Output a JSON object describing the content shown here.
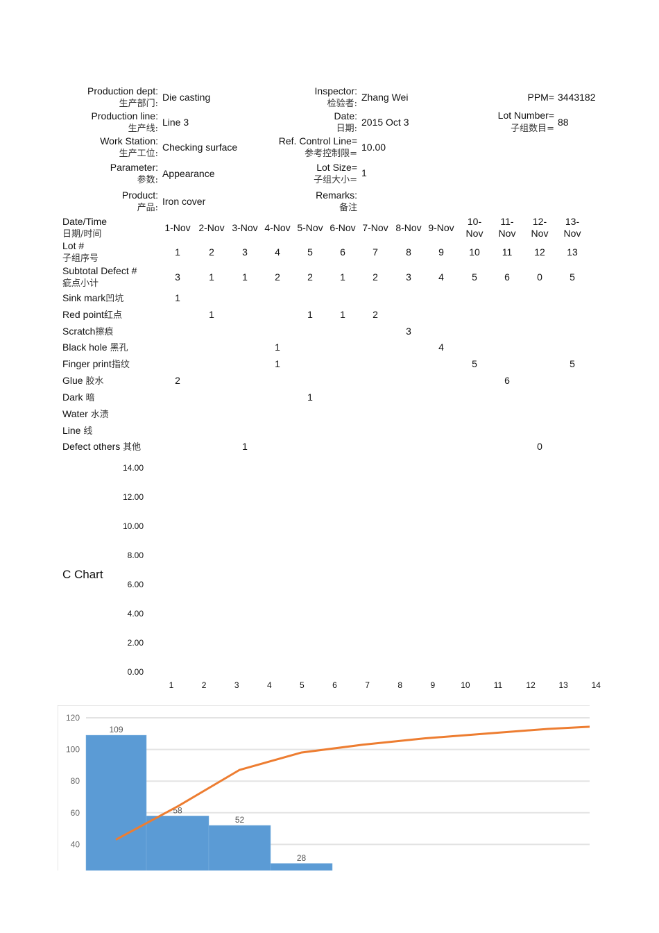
{
  "header": {
    "left": [
      {
        "en": "Production dept:",
        "zh": "生产部门:",
        "value": "Die casting"
      },
      {
        "en": "Production line:",
        "zh": "生产线:",
        "value": "Line 3"
      },
      {
        "en": "Work Station:",
        "zh": "生产工位:",
        "value": "Checking surface"
      },
      {
        "en": "Parameter:",
        "zh": "参数:",
        "value": "Appearance"
      },
      {
        "en": "Product:",
        "zh": "产品:",
        "value": "Iron cover"
      }
    ],
    "middle": [
      {
        "en": "Inspector:",
        "zh": "检验者:",
        "value": "Zhang Wei"
      },
      {
        "en": "Date:",
        "zh": "日期:",
        "value": "2015 Oct 3"
      },
      {
        "en": "Ref. Control Line=",
        "zh": "参考控制限=",
        "value": "10.00"
      },
      {
        "en": "Lot Size=",
        "zh": "子组大小=",
        "value": "1"
      },
      {
        "en": "Remarks:",
        "zh": "备注",
        "value": ""
      }
    ],
    "ppm": {
      "label": "PPM=",
      "value": "3443182"
    },
    "lot_number": {
      "en": "Lot Number=",
      "zh": "子组数目=",
      "value": "88"
    }
  },
  "table": {
    "row_labels": [
      {
        "en": "Date/Time",
        "zh": "日期/时间"
      },
      {
        "en": "Lot #",
        "zh": "子组序号"
      },
      {
        "en": "Subtotal Defect #",
        "zh": "疵点小计"
      },
      {
        "en": "Sink mark",
        "zh": "凹坑"
      },
      {
        "en": "Red point",
        "zh": "红点"
      },
      {
        "en": "Scratch",
        "zh": "擦痕"
      },
      {
        "en": "Black hole ",
        "zh": "黑孔"
      },
      {
        "en": "Finger print",
        "zh": "指纹"
      },
      {
        "en": "Glue ",
        "zh": "胶水"
      },
      {
        "en": "Dark ",
        "zh": "暗"
      },
      {
        "en": "Water ",
        "zh": "水渍"
      },
      {
        "en": "Line ",
        "zh": "线"
      },
      {
        "en": "Defect others ",
        "zh": "其他"
      }
    ],
    "dates": [
      "1-Nov",
      "2-Nov",
      "3-Nov",
      "4-Nov",
      "5-Nov",
      "6-Nov",
      "7-Nov",
      "8-Nov",
      "9-Nov",
      "10-\nNov",
      "11-\nNov",
      "12-\nNov",
      "13-\nNov"
    ],
    "rows": [
      [
        "1",
        "2",
        "3",
        "4",
        "5",
        "6",
        "7",
        "8",
        "9",
        "10",
        "11",
        "12",
        "13"
      ],
      [
        "3",
        "1",
        "1",
        "2",
        "2",
        "1",
        "2",
        "3",
        "4",
        "5",
        "6",
        "0",
        "5"
      ],
      [
        "1",
        "",
        "",
        "",
        "",
        "",
        "",
        "",
        "",
        "",
        "",
        "",
        ""
      ],
      [
        "",
        "1",
        "",
        "",
        "1",
        "1",
        "2",
        "",
        "",
        "",
        "",
        "",
        ""
      ],
      [
        "",
        "",
        "",
        "",
        "",
        "",
        "",
        "3",
        "",
        "",
        "",
        "",
        ""
      ],
      [
        "",
        "",
        "",
        "1",
        "",
        "",
        "",
        "",
        "4",
        "",
        "",
        "",
        ""
      ],
      [
        "",
        "",
        "",
        "1",
        "",
        "",
        "",
        "",
        "",
        "5",
        "",
        "",
        "5"
      ],
      [
        "2",
        "",
        "",
        "",
        "",
        "",
        "",
        "",
        "",
        "",
        "6",
        "",
        ""
      ],
      [
        "",
        "",
        "",
        "",
        "1",
        "",
        "",
        "",
        "",
        "",
        "",
        "",
        ""
      ],
      [
        "",
        "",
        "",
        "",
        "",
        "",
        "",
        "",
        "",
        "",
        "",
        "",
        ""
      ],
      [
        "",
        "",
        "",
        "",
        "",
        "",
        "",
        "",
        "",
        "",
        "",
        "",
        ""
      ],
      [
        "",
        "",
        "1",
        "",
        "",
        "",
        "",
        "",
        "",
        "",
        "",
        "0",
        ""
      ]
    ]
  },
  "chart_data": [
    {
      "type": "line",
      "title": "C Chart",
      "y_ticks": [
        "0.00",
        "2.00",
        "4.00",
        "6.00",
        "8.00",
        "10.00",
        "12.00",
        "14.00"
      ],
      "x_ticks": [
        "1",
        "2",
        "3",
        "4",
        "5",
        "6",
        "7",
        "8",
        "9",
        "10",
        "11",
        "12",
        "13",
        "14"
      ],
      "ylim": [
        0,
        14
      ],
      "series": []
    },
    {
      "type": "bar",
      "y_ticks": [
        "40",
        "60",
        "80",
        "100",
        "120"
      ],
      "values": [
        109,
        58,
        52,
        28
      ],
      "line_values": [
        43,
        64,
        87,
        98,
        103,
        107,
        110,
        113,
        115,
        117
      ],
      "colors": {
        "bar": "#5b9bd5",
        "line": "#ed7d31"
      },
      "grid": true
    }
  ]
}
